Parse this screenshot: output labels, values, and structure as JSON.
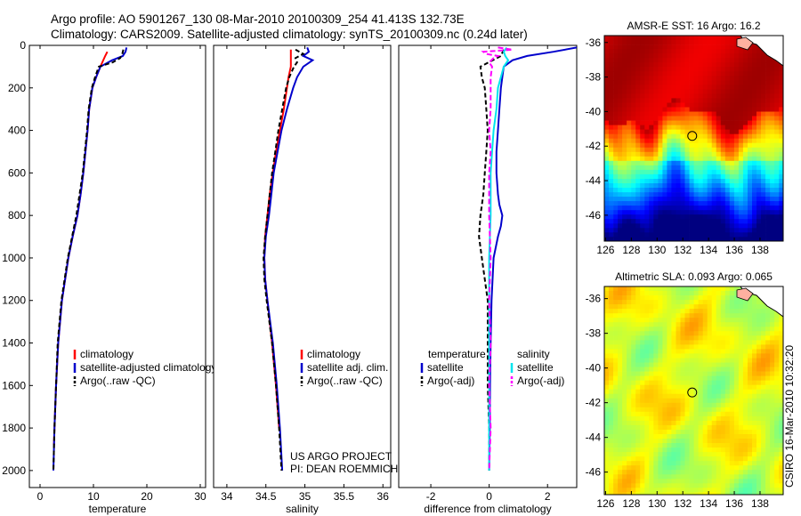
{
  "header": {
    "line1": "Argo profile: AO 5901267_130 08-Mar-2010 20100309_254 41.413S 132.73E",
    "line2": "Climatology: CARS2009. Satellite-adjusted climatology: synTS_20100309.nc (0.24d later)"
  },
  "credit": "CSIRO 16-Mar-2010 10:32:20",
  "colors": {
    "red": "#ff0000",
    "blue": "#0000cc",
    "black": "#000000",
    "cyan": "#00e5ee",
    "magenta": "#ff00ff"
  },
  "chart_data": [
    {
      "type": "line",
      "xlabel": "temperature",
      "xticks": [
        "0",
        "10",
        "20",
        "30"
      ],
      "xlim": [
        -2,
        31
      ],
      "yticks": [
        "0",
        "200",
        "400",
        "600",
        "800",
        "1000",
        "1200",
        "1400",
        "1600",
        "1800",
        "2000"
      ],
      "ylim": [
        0,
        2080
      ],
      "series": [
        {
          "name": "climatology",
          "color": "red",
          "dash": "",
          "y": [
            30,
            50,
            100,
            150,
            200,
            300,
            400,
            500,
            600,
            700,
            800,
            900,
            1000,
            1200,
            1400,
            1600,
            1800,
            1880
          ],
          "x": [
            12.6,
            12.2,
            11.3,
            10.5,
            9.8,
            9.2,
            8.9,
            8.5,
            8.1,
            7.6,
            7.0,
            6.1,
            5.3,
            4.1,
            3.4,
            3.0,
            2.7,
            2.6
          ]
        },
        {
          "name": "satellite-adjusted climatology",
          "color": "blue",
          "dash": "",
          "y": [
            10,
            30,
            50,
            70,
            100,
            150,
            200,
            300,
            400,
            500,
            600,
            700,
            800,
            900,
            1000,
            1200,
            1400,
            1600,
            1800,
            2000
          ],
          "x": [
            16.2,
            16.0,
            15.5,
            13.5,
            11.3,
            10.5,
            9.8,
            9.2,
            8.9,
            8.5,
            8.1,
            7.6,
            7.0,
            6.1,
            5.3,
            4.1,
            3.4,
            3.0,
            2.7,
            2.5
          ]
        },
        {
          "name": "Argo(..raw -QC)",
          "color": "black",
          "dash": "5,3",
          "y": [
            20,
            40,
            60,
            80,
            100,
            150,
            200,
            300,
            400,
            500,
            600,
            700,
            800,
            900,
            1000,
            1200,
            1400,
            1600,
            1800,
            2000
          ],
          "x": [
            15.6,
            15.4,
            15.0,
            13.6,
            11.0,
            10.3,
            9.7,
            9.1,
            8.8,
            8.4,
            8.0,
            7.4,
            6.8,
            6.0,
            5.2,
            4.0,
            3.3,
            3.0,
            2.7,
            2.5
          ]
        }
      ]
    },
    {
      "type": "line",
      "xlabel": "salinity",
      "xticks": [
        "34",
        "34.5",
        "35",
        "35.5",
        "36"
      ],
      "xlim": [
        33.83,
        36.1
      ],
      "yticks": [],
      "ylim": [
        0,
        2080
      ],
      "annotation": [
        "US ARGO PROJECT",
        "PI: DEAN ROEMMICH"
      ],
      "series": [
        {
          "name": "climatology",
          "color": "red",
          "dash": "",
          "y": [
            20,
            50,
            100,
            150,
            200,
            300,
            400,
            500,
            600,
            700,
            800,
            900,
            1000,
            1100,
            1200,
            1400,
            1600,
            1800
          ],
          "x": [
            34.82,
            34.82,
            34.82,
            34.79,
            34.77,
            34.73,
            34.68,
            34.63,
            34.59,
            34.55,
            34.52,
            34.49,
            34.48,
            34.49,
            34.52,
            34.58,
            34.63,
            34.67
          ]
        },
        {
          "name": "satellite adj. clim.",
          "color": "blue",
          "dash": "",
          "y": [
            10,
            30,
            50,
            70,
            100,
            150,
            200,
            300,
            400,
            500,
            600,
            700,
            800,
            900,
            1000,
            1100,
            1200,
            1400,
            1600,
            1800,
            2000
          ],
          "x": [
            35.03,
            35.05,
            34.98,
            35.1,
            34.98,
            34.9,
            34.85,
            34.77,
            34.7,
            34.65,
            34.6,
            34.57,
            34.54,
            34.5,
            34.48,
            34.49,
            34.52,
            34.59,
            34.64,
            34.68,
            34.71
          ]
        },
        {
          "name": "Argo(..raw -QC)",
          "color": "black",
          "dash": "5,3",
          "y": [
            20,
            40,
            60,
            80,
            100,
            150,
            200,
            300,
            400,
            500,
            600,
            700,
            800,
            900,
            1000,
            1100,
            1200,
            1400,
            1600,
            1800,
            2000
          ],
          "x": [
            34.88,
            34.98,
            34.88,
            34.9,
            34.86,
            34.8,
            34.76,
            34.71,
            34.66,
            34.62,
            34.58,
            34.55,
            34.52,
            34.49,
            34.47,
            34.48,
            34.51,
            34.58,
            34.63,
            34.67,
            34.7
          ]
        }
      ]
    },
    {
      "type": "line",
      "xlabel": "difference from climatology",
      "xticks": [
        "-2",
        "0",
        "2"
      ],
      "xlim": [
        -3.1,
        3.0
      ],
      "yticks": [],
      "ylim": [
        0,
        2080
      ],
      "legend_left_title": "temperature",
      "legend_right_title": "salinity",
      "series": [
        {
          "name": "satellite",
          "group": "temperature",
          "color": "blue",
          "dash": "",
          "y": [
            10,
            30,
            50,
            70,
            100,
            150,
            200,
            300,
            400,
            500,
            600,
            700,
            750,
            800,
            850,
            900,
            1000,
            1200,
            1400,
            1600,
            1800,
            2000
          ],
          "x": [
            3.0,
            2.2,
            1.3,
            0.8,
            0.5,
            0.45,
            0.4,
            0.35,
            0.3,
            0.25,
            0.25,
            0.3,
            0.35,
            0.45,
            0.4,
            0.3,
            0.15,
            0.08,
            0.05,
            0.03,
            0.02,
            0.0
          ]
        },
        {
          "name": "Argo(-adj)",
          "group": "temperature",
          "color": "black",
          "dash": "5,3",
          "y": [
            20,
            50,
            100,
            150,
            200,
            300,
            400,
            500,
            600,
            700,
            800,
            900,
            1000,
            1100,
            1200,
            1400,
            1600,
            1800,
            2000
          ],
          "x": [
            0.5,
            0.4,
            -0.3,
            -0.25,
            -0.15,
            -0.1,
            -0.05,
            -0.1,
            -0.15,
            -0.2,
            -0.3,
            -0.35,
            -0.25,
            -0.15,
            -0.05,
            -0.05,
            -0.05,
            0.0,
            0.0
          ]
        },
        {
          "name": "satellite",
          "group": "salinity",
          "color": "cyan",
          "dash": "",
          "y": [
            10,
            30,
            50,
            70,
            100,
            150,
            200,
            300,
            400,
            500,
            600,
            800,
            1000,
            1200,
            1400,
            1600,
            1800,
            2000
          ],
          "x": [
            0.6,
            0.5,
            0.55,
            0.65,
            0.5,
            0.4,
            0.3,
            0.25,
            0.15,
            0.1,
            0.05,
            0.05,
            0.0,
            0.0,
            0.0,
            0.0,
            0.0,
            0.0
          ]
        },
        {
          "name": "Argo(-adj)",
          "group": "salinity",
          "color": "magenta",
          "dash": "6,3",
          "y": [
            10,
            20,
            30,
            40,
            50,
            60,
            80,
            100,
            150,
            200,
            300,
            400,
            500,
            600,
            800,
            1000,
            1200,
            1400,
            1600,
            1800,
            2000
          ],
          "x": [
            0.3,
            0.8,
            -0.2,
            -0.1,
            0.3,
            0.15,
            0.0,
            0.1,
            0.05,
            0.05,
            0.05,
            0.0,
            0.05,
            0.0,
            0.0,
            0.05,
            0.0,
            0.05,
            0.0,
            0.05,
            0.0
          ]
        }
      ]
    },
    {
      "type": "heatmap",
      "title": "AMSR-E SST: 16 Argo: 16.2",
      "xticks": [
        "126",
        "128",
        "130",
        "132",
        "134",
        "136",
        "138"
      ],
      "yticks": [
        "-36",
        "-38",
        "-40",
        "-42",
        "-44",
        "-46"
      ],
      "xlim": [
        125.9,
        139.8
      ],
      "ylim": [
        -47.5,
        -35.6
      ],
      "marker": {
        "lon": 132.73,
        "lat": -41.41
      },
      "colormap": "jet",
      "field": "sst"
    },
    {
      "type": "heatmap",
      "title": "Altimetric SLA: 0.093 Argo: 0.065",
      "xticks": [
        "126",
        "128",
        "130",
        "132",
        "134",
        "136",
        "138"
      ],
      "yticks": [
        "-36",
        "-38",
        "-40",
        "-42",
        "-44",
        "-46"
      ],
      "xlim": [
        125.9,
        139.8
      ],
      "ylim": [
        -47.3,
        -35.3
      ],
      "marker": {
        "lon": 132.73,
        "lat": -41.41
      },
      "colormap": "jet",
      "field": "sla"
    }
  ]
}
